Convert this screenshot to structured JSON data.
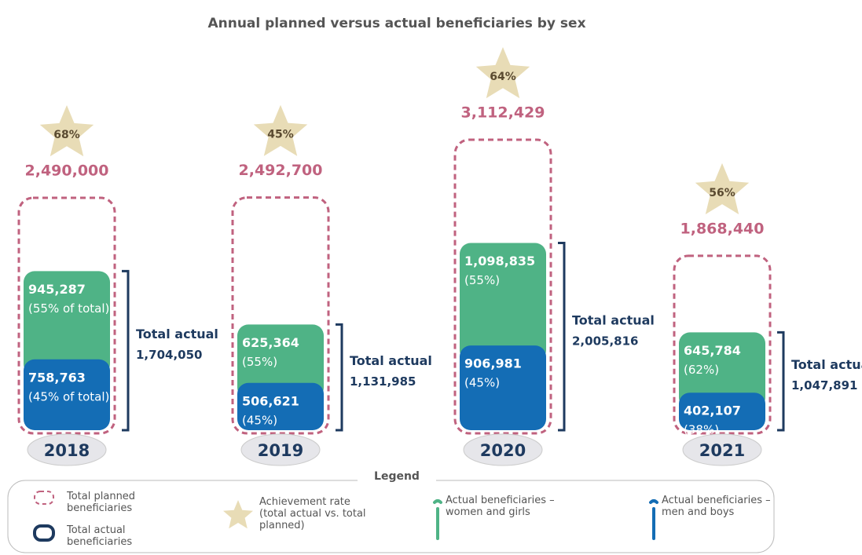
{
  "chart_data": {
    "type": "bar",
    "title": "Annual planned versus actual beneficiaries by sex",
    "categories": [
      "2018",
      "2019",
      "2020",
      "2021"
    ],
    "series": [
      {
        "name": "Total planned beneficiaries",
        "color": "#c0627f",
        "values": [
          2490000,
          2492700,
          3112429,
          1868440
        ],
        "value_labels": [
          "2,490,000",
          "2,492,700",
          "3,112,429",
          "1,868,440"
        ]
      },
      {
        "name": "Actual beneficiaries – women and girls",
        "color": "#4fb386",
        "values": [
          945287,
          625364,
          1098835,
          645784
        ],
        "value_labels": [
          "945,287",
          "625,364",
          "1,098,835",
          "645,784"
        ],
        "shares": [
          55,
          55,
          55,
          62
        ],
        "share_labels": [
          "(55% of total)",
          "(55%)",
          "(55%)",
          "(62%)"
        ]
      },
      {
        "name": "Actual beneficiaries – men and boys",
        "color": "#146db5",
        "values": [
          758763,
          506621,
          906981,
          402107
        ],
        "value_labels": [
          "758,763",
          "506,621",
          "906,981",
          "402,107"
        ],
        "shares": [
          45,
          45,
          45,
          38
        ],
        "share_labels": [
          "(45% of total)",
          "(45%)",
          "(45%)",
          "(38%)"
        ]
      }
    ],
    "totals": {
      "name": "Total actual beneficiaries",
      "label": "Total actual",
      "color": "#1e3a5f",
      "values": [
        1704050,
        1131985,
        2005816,
        1047891
      ],
      "value_labels": [
        "1,704,050",
        "1,131,985",
        "2,005,816",
        "1,047,891"
      ]
    },
    "achievement": {
      "name": "Achievement rate (total actual vs. total planned)",
      "color": "#e8dcb6",
      "values": [
        68,
        45,
        64,
        56
      ],
      "value_labels": [
        "68%",
        "45%",
        "64%",
        "56%"
      ]
    },
    "legend_title": "Legend"
  }
}
